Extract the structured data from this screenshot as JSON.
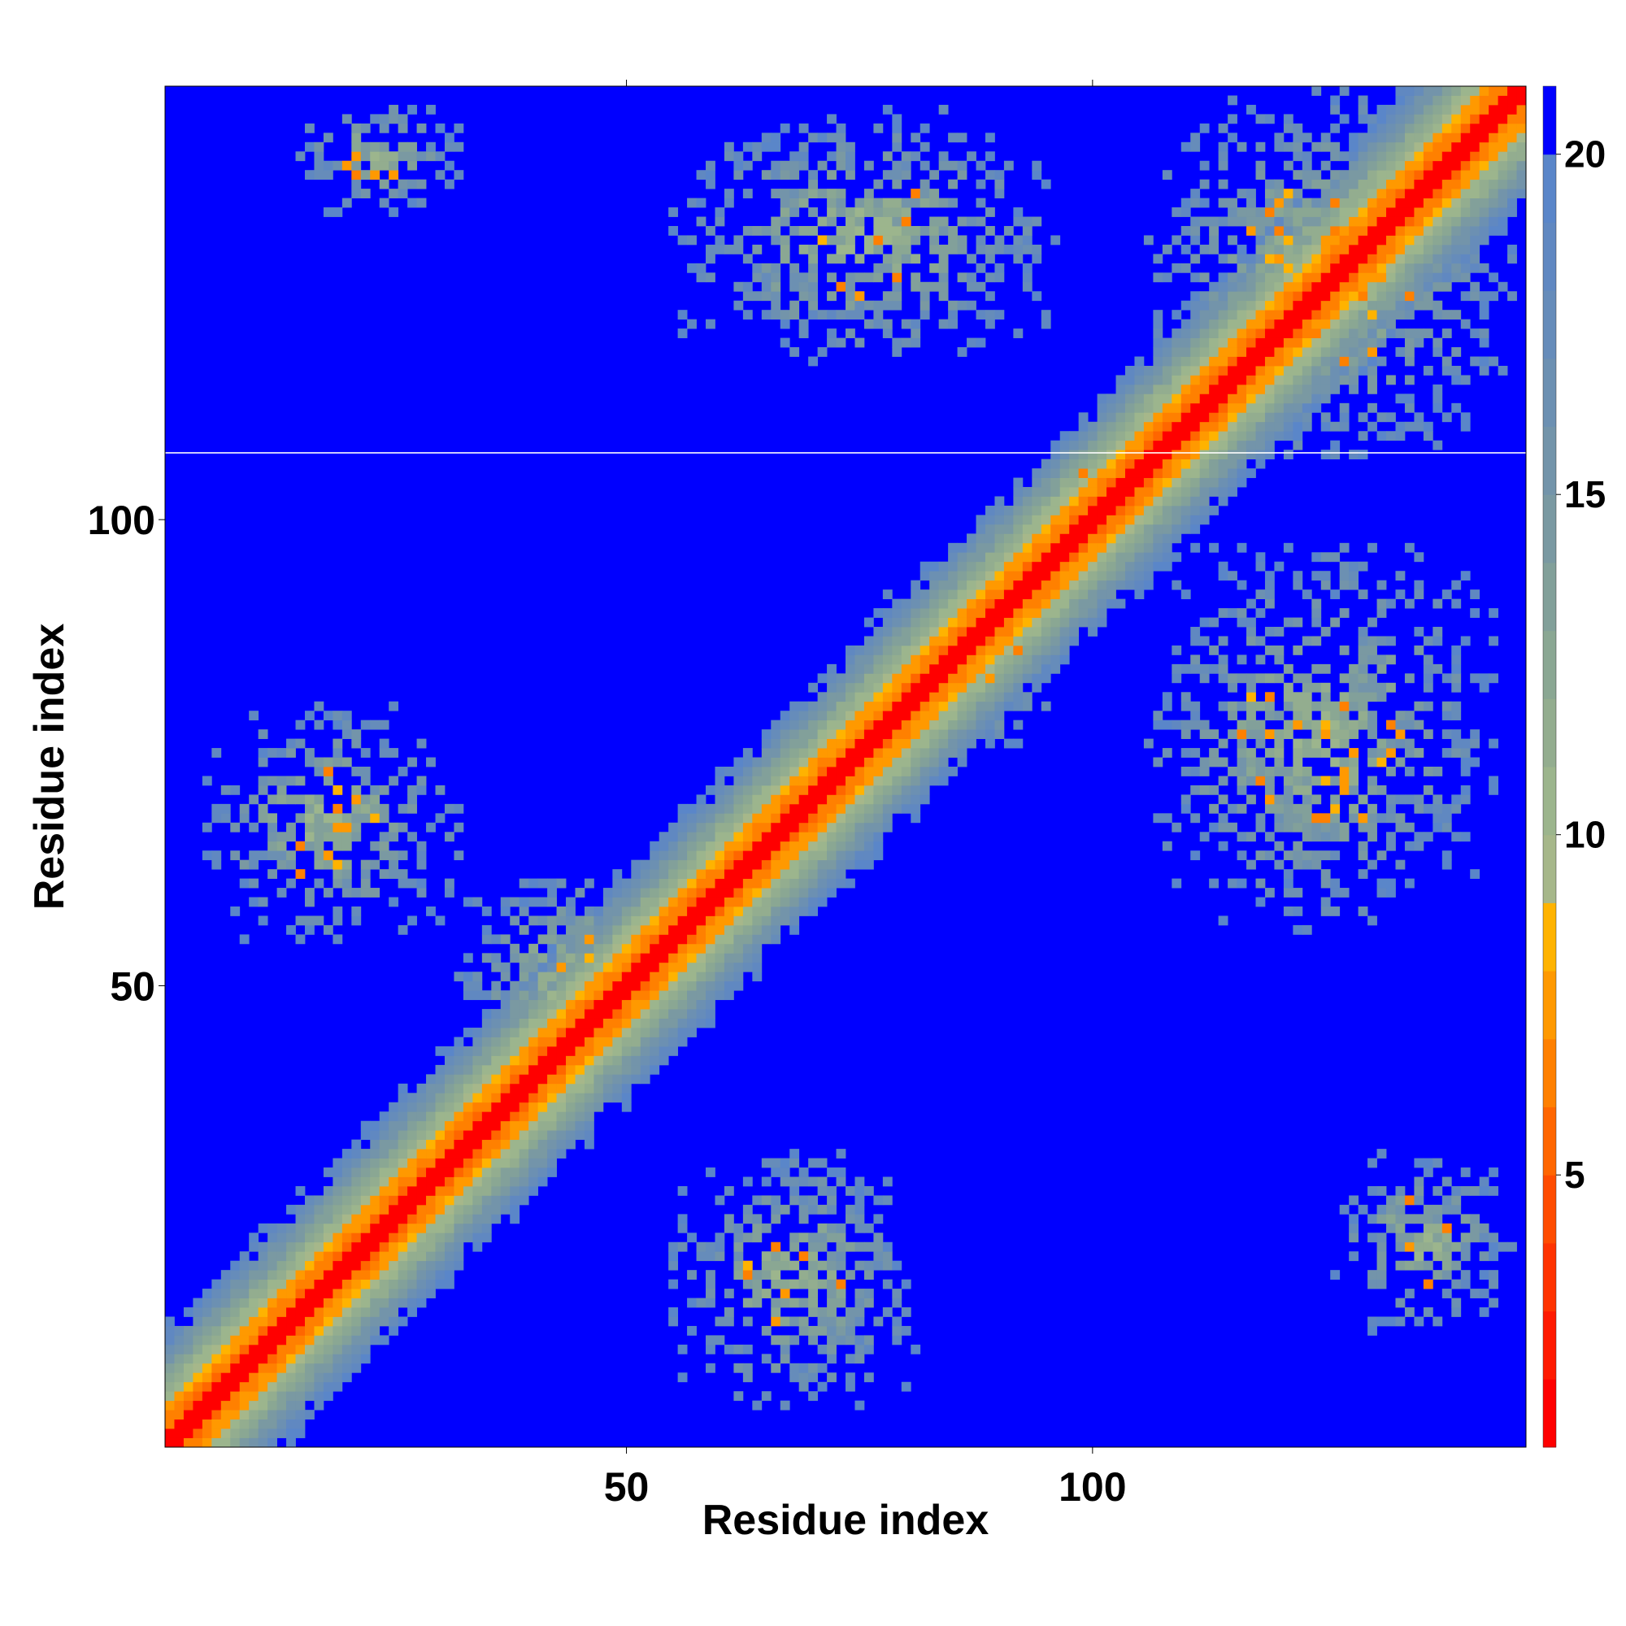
{
  "chart_data": {
    "type": "heatmap",
    "title": "",
    "xlabel": "Residue index",
    "ylabel": "Residue index",
    "n_residues": 146,
    "xlim": [
      1,
      146
    ],
    "ylim": [
      1,
      146
    ],
    "x_ticks": [
      50,
      100
    ],
    "y_ticks": [
      50,
      100
    ],
    "colorbar": {
      "range": [
        1,
        21
      ],
      "ticks": [
        5,
        10,
        15,
        20
      ],
      "bins": [
        {
          "min": 1,
          "max": 2,
          "color": "#ff0000"
        },
        {
          "min": 2,
          "max": 3,
          "color": "#ff1a00"
        },
        {
          "min": 3,
          "max": 4,
          "color": "#ff3300"
        },
        {
          "min": 4,
          "max": 5,
          "color": "#ff4c00"
        },
        {
          "min": 5,
          "max": 6,
          "color": "#ff6600"
        },
        {
          "min": 6,
          "max": 7,
          "color": "#ff8000"
        },
        {
          "min": 7,
          "max": 8,
          "color": "#ff9900"
        },
        {
          "min": 8,
          "max": 9,
          "color": "#ffb300"
        },
        {
          "min": 9,
          "max": 10,
          "color": "#a6b78a"
        },
        {
          "min": 10,
          "max": 11,
          "color": "#9cb58d"
        },
        {
          "min": 11,
          "max": 12,
          "color": "#93ad8f"
        },
        {
          "min": 12,
          "max": 13,
          "color": "#8aa793"
        },
        {
          "min": 13,
          "max": 14,
          "color": "#82a09a"
        },
        {
          "min": 14,
          "max": 15,
          "color": "#7a99a2"
        },
        {
          "min": 15,
          "max": 16,
          "color": "#7394aa"
        },
        {
          "min": 16,
          "max": 17,
          "color": "#6c90b2"
        },
        {
          "min": 17,
          "max": 18,
          "color": "#668cba"
        },
        {
          "min": 18,
          "max": 19,
          "color": "#6088c1"
        },
        {
          "min": 19,
          "max": 20,
          "color": "#5a86c9"
        },
        {
          "min": 20,
          "max": 21,
          "color": "#0000ff"
        }
      ]
    },
    "background_value": 21,
    "diagonal_band": {
      "description": "distance grows with |i-j|; red at |i-j|<=1, orange up to ~4, green/slate to ~10"
    },
    "contact_clusters": [
      {
        "i_range": [
          15,
          32
        ],
        "j_range": [
          133,
          145
        ],
        "density": "high"
      },
      {
        "i_range": [
          55,
          96
        ],
        "j_range": [
          117,
          144
        ],
        "density": "high"
      },
      {
        "i_range": [
          4,
          32
        ],
        "j_range": [
          55,
          80
        ],
        "density": "high"
      },
      {
        "i_range": [
          32,
          55
        ],
        "j_range": [
          40,
          62
        ],
        "density": "high"
      },
      {
        "i_range": [
          55,
          81
        ],
        "j_range": [
          5,
          32
        ],
        "density": "high"
      },
      {
        "i_range": [
          78,
          97
        ],
        "j_range": [
          75,
          97
        ],
        "density": "medium"
      },
      {
        "i_range": [
          106,
          143
        ],
        "j_range": [
          56,
          97
        ],
        "density": "high"
      },
      {
        "i_range": [
          126,
          145
        ],
        "j_range": [
          13,
          32
        ],
        "density": "high"
      },
      {
        "i_range": [
          106,
          145
        ],
        "j_range": [
          107,
          146
        ],
        "density": "high"
      },
      {
        "i_range": [
          95,
          110
        ],
        "j_range": [
          95,
          112
        ],
        "density": "medium"
      }
    ]
  }
}
